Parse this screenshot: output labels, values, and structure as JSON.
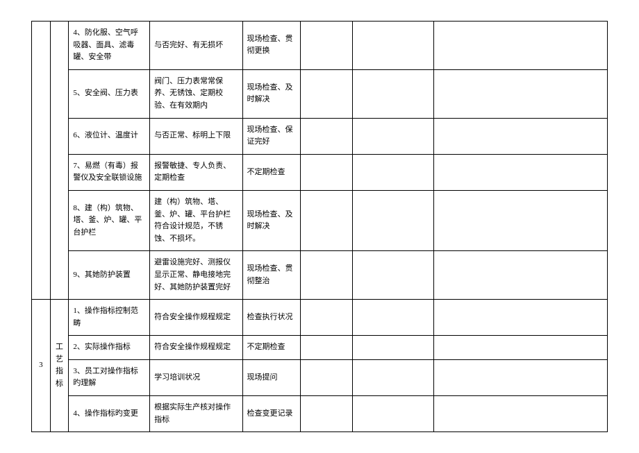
{
  "table": {
    "columns": [
      {
        "width": "3.2%"
      },
      {
        "width": "3.2%"
      },
      {
        "width": "14%"
      },
      {
        "width": "16%"
      },
      {
        "width": "10%"
      },
      {
        "width": "9%"
      },
      {
        "width": "14%"
      },
      {
        "width": "30%"
      }
    ],
    "groupA": {
      "rows": [
        {
          "c2": "4、防化服、空气呼吸器、面具、滤毒罐、安全带",
          "c3": "与否完好、有无损坏",
          "c4": "现场检查、贯彻更换"
        },
        {
          "c2": "5、安全阀、压力表",
          "c3": "阀门、压力表常常保养、无锈蚀、定期校验、在有效期内",
          "c4": "现场检查、及时解决"
        },
        {
          "c2": "6、液位计、温度计",
          "c3": "与否正常、标明上下限",
          "c4": "现场检查、保证完好"
        },
        {
          "c2": "7、易燃（有毒）报警仪及安全联锁设施",
          "c3": "报警敏捷、专人负责、定期检查",
          "c4": "不定期检查"
        },
        {
          "c2": "8、建（构）筑物、塔、釜、炉、罐、平台护栏",
          "c3": "建（构）筑物、塔、釜、炉、罐、平台护栏符合设计规范，不锈蚀、不损坏。",
          "c4": "现场检查、及时解决"
        },
        {
          "c2": "9、其她防护装置",
          "c3": "避雷设施完好、测报仪显示正常、静电接地完好、其她防护装置完好",
          "c4": "现场检查、贯彻整治"
        }
      ]
    },
    "groupB": {
      "c0": "3",
      "c1": "工艺指标",
      "rows": [
        {
          "c2": "1、操作指标控制范畴",
          "c3": "符合安全操作规程规定",
          "c4": "检查执行状况"
        },
        {
          "c2": "2、实际操作指标",
          "c3": "符合安全操作规程规定",
          "c4": "不定期检查"
        },
        {
          "c2": "3、员工对操作指标旳理解",
          "c3": "学习培训状况",
          "c4": "现场提问"
        },
        {
          "c2": "4、操作指标旳变更",
          "c3": "根据实际生产核对操作指标",
          "c4": "检查变更记录"
        }
      ]
    }
  }
}
